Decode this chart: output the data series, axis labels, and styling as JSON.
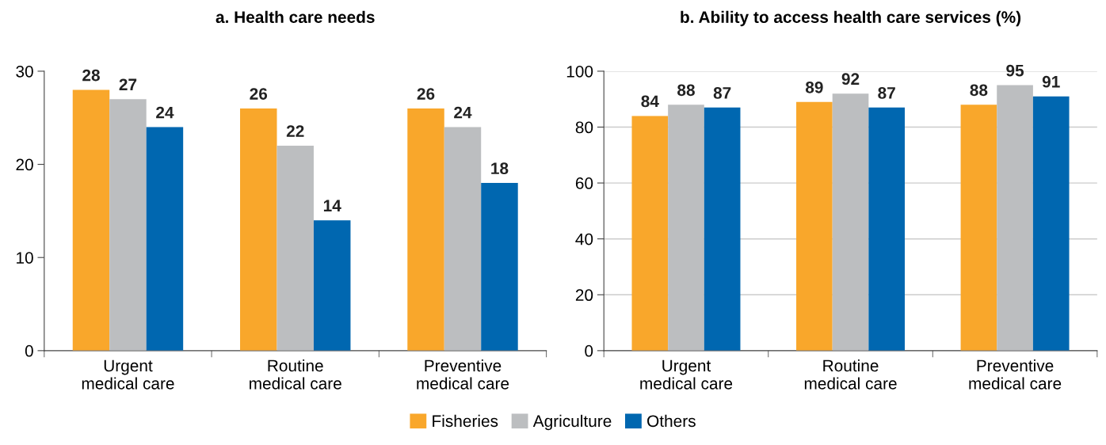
{
  "chart_data": [
    {
      "type": "bar",
      "title": "a. Health care needs",
      "categories": [
        "Urgent\nmedical care",
        "Routine\nmedical care",
        "Preventive\nmedical care"
      ],
      "series": [
        {
          "name": "Fisheries",
          "color": "#f9a72b",
          "values": [
            28,
            26,
            26
          ]
        },
        {
          "name": "Agriculture",
          "color": "#bcbec0",
          "values": [
            27,
            22,
            24
          ]
        },
        {
          "name": "Others",
          "color": "#0067b0",
          "values": [
            24,
            14,
            18
          ]
        }
      ],
      "ylim": [
        0,
        30
      ],
      "yticks": [
        0,
        10,
        20,
        30
      ],
      "grid": false,
      "data_labels": true,
      "legend": "bottom"
    },
    {
      "type": "bar",
      "title": "b. Ability to access health care services (%)",
      "categories": [
        "Urgent\nmedical care",
        "Routine\nmedical care",
        "Preventive\nmedical care"
      ],
      "series": [
        {
          "color": "#f9a72b",
          "values": [
            84,
            89,
            88
          ]
        },
        {
          "color": "#bcbec0",
          "values": [
            88,
            92,
            95
          ]
        },
        {
          "color": "#0067b0",
          "values": [
            87,
            87,
            91
          ]
        }
      ],
      "ylim": [
        0,
        100
      ],
      "yticks": [
        0,
        20,
        40,
        60,
        80,
        100
      ],
      "grid": "y",
      "data_labels": true
    }
  ]
}
